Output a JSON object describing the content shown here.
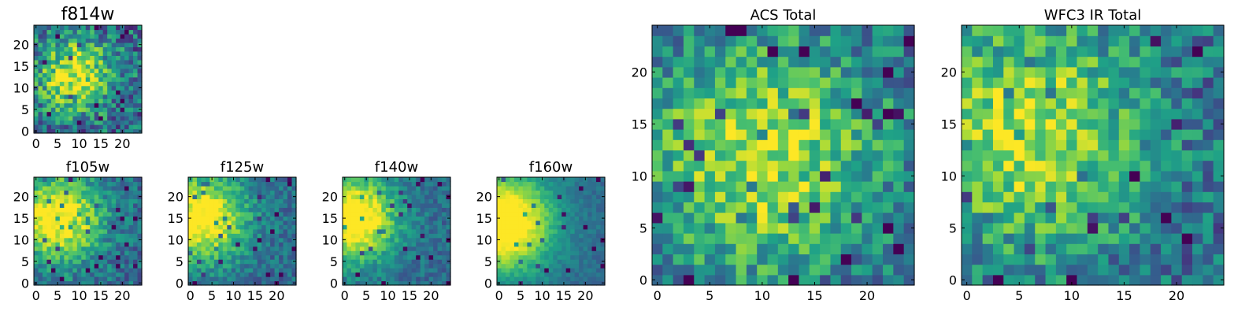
{
  "chart_data": [
    {
      "type": "heatmap",
      "title": "f814w",
      "xticks": [
        0,
        5,
        10,
        15,
        20
      ],
      "yticks": [
        0,
        5,
        10,
        15,
        20
      ],
      "xlim": [
        0,
        25
      ],
      "ylim": [
        0,
        25
      ],
      "grid_size": 25,
      "colormap": "viridis",
      "seed": 11,
      "hotspot": {
        "x": 9,
        "y": 13,
        "strength": 0.6,
        "spread": 6
      },
      "noise": 0.55
    },
    {
      "type": "heatmap",
      "title": "f105w",
      "xticks": [
        0,
        5,
        10,
        15,
        20
      ],
      "yticks": [
        0,
        5,
        10,
        15,
        20
      ],
      "xlim": [
        0,
        25
      ],
      "ylim": [
        0,
        25
      ],
      "grid_size": 25,
      "colormap": "viridis",
      "seed": 23,
      "hotspot": {
        "x": 5,
        "y": 15,
        "strength": 0.75,
        "spread": 7
      },
      "noise": 0.35
    },
    {
      "type": "heatmap",
      "title": "f125w",
      "xticks": [
        0,
        5,
        10,
        15,
        20
      ],
      "yticks": [
        0,
        5,
        10,
        15,
        20
      ],
      "xlim": [
        0,
        25
      ],
      "ylim": [
        0,
        25
      ],
      "grid_size": 25,
      "colormap": "viridis",
      "seed": 37,
      "hotspot": {
        "x": 3,
        "y": 15,
        "strength": 0.75,
        "spread": 7
      },
      "noise": 0.3
    },
    {
      "type": "heatmap",
      "title": "f140w",
      "xticks": [
        0,
        5,
        10,
        15,
        20
      ],
      "yticks": [
        0,
        5,
        10,
        15,
        20
      ],
      "xlim": [
        0,
        25
      ],
      "ylim": [
        0,
        25
      ],
      "grid_size": 25,
      "colormap": "viridis",
      "seed": 41,
      "hotspot": {
        "x": 2,
        "y": 15,
        "strength": 0.8,
        "spread": 7
      },
      "noise": 0.25
    },
    {
      "type": "heatmap",
      "title": "f160w",
      "xticks": [
        0,
        5,
        10,
        15,
        20
      ],
      "yticks": [
        0,
        5,
        10,
        15,
        20
      ],
      "xlim": [
        0,
        25
      ],
      "ylim": [
        0,
        25
      ],
      "grid_size": 25,
      "colormap": "viridis",
      "seed": 53,
      "hotspot": {
        "x": 1,
        "y": 14,
        "strength": 0.85,
        "spread": 8
      },
      "noise": 0.15
    },
    {
      "type": "heatmap",
      "title": "ACS Total",
      "xticks": [
        0,
        5,
        10,
        15,
        20
      ],
      "yticks": [
        0,
        5,
        10,
        15,
        20
      ],
      "xlim": [
        0,
        25
      ],
      "ylim": [
        0,
        25
      ],
      "grid_size": 25,
      "colormap": "viridis",
      "seed": 67,
      "hotspot": {
        "x": 10,
        "y": 12,
        "strength": 0.55,
        "spread": 8
      },
      "noise": 0.45
    },
    {
      "type": "heatmap",
      "title": "WFC3 IR Total",
      "xticks": [
        0,
        5,
        10,
        15,
        20
      ],
      "yticks": [
        0,
        5,
        10,
        15,
        20
      ],
      "xlim": [
        0,
        25
      ],
      "ylim": [
        0,
        25
      ],
      "grid_size": 25,
      "colormap": "viridis",
      "seed": 79,
      "hotspot": {
        "x": 6,
        "y": 14,
        "strength": 0.55,
        "spread": 8
      },
      "noise": 0.45
    }
  ],
  "colormap_stops": [
    "#440154",
    "#46327e",
    "#365c8d",
    "#277f8e",
    "#1fa187",
    "#4ac16d",
    "#a0da39",
    "#fde725"
  ]
}
